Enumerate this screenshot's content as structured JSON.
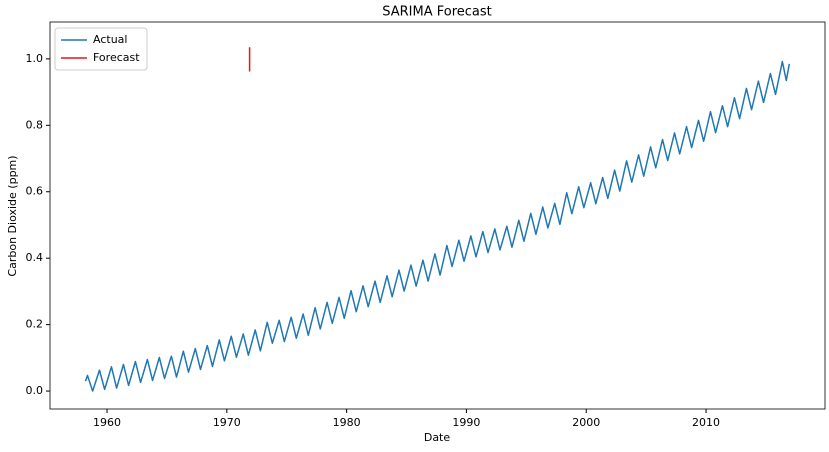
{
  "chart_data": {
    "type": "line",
    "title": "SARIMA Forecast",
    "xlabel": "Date",
    "ylabel": "Carbon Dioxide (ppm)",
    "xlim": [
      1955.24,
      2019.93
    ],
    "ylim": [
      -0.054,
      1.111
    ],
    "xticks": [
      1960,
      1970,
      1980,
      1990,
      2000,
      2010
    ],
    "yticks": [
      {
        "value": 0,
        "label": "0.0"
      },
      0.2,
      0.4,
      0.6,
      0.8,
      {
        "value": 1,
        "label": "1.0"
      }
    ],
    "grid": false,
    "legend": "upper left",
    "series": [
      {
        "name": "Actual",
        "color": "#1f77b4",
        "x": [
          1958.2,
          1958.37,
          1958.8,
          1959.37,
          1959.8,
          1960.37,
          1960.8,
          1961.37,
          1961.8,
          1962.37,
          1962.8,
          1963.37,
          1963.8,
          1964.37,
          1964.8,
          1965.37,
          1965.8,
          1966.37,
          1966.8,
          1967.37,
          1967.8,
          1968.37,
          1968.8,
          1969.37,
          1969.8,
          1970.37,
          1970.8,
          1971.37,
          1971.8,
          1972.37,
          1972.8,
          1973.37,
          1973.8,
          1974.37,
          1974.8,
          1975.37,
          1975.8,
          1976.37,
          1976.8,
          1977.37,
          1977.8,
          1978.37,
          1978.8,
          1979.37,
          1979.8,
          1980.37,
          1980.8,
          1981.37,
          1981.8,
          1982.37,
          1982.8,
          1983.37,
          1983.8,
          1984.37,
          1984.8,
          1985.37,
          1985.8,
          1986.37,
          1986.8,
          1987.37,
          1987.8,
          1988.37,
          1988.8,
          1989.37,
          1989.8,
          1990.37,
          1990.8,
          1991.37,
          1991.8,
          1992.37,
          1992.8,
          1993.37,
          1993.8,
          1994.37,
          1994.8,
          1995.37,
          1995.8,
          1996.37,
          1996.8,
          1997.37,
          1997.8,
          1998.37,
          1998.8,
          1999.37,
          1999.8,
          2000.37,
          2000.8,
          2001.37,
          2001.8,
          2002.37,
          2002.8,
          2003.37,
          2003.8,
          2004.37,
          2004.8,
          2005.37,
          2005.8,
          2006.37,
          2006.8,
          2007.37,
          2007.8,
          2008.37,
          2008.8,
          2009.37,
          2009.8,
          2010.37,
          2010.8,
          2011.37,
          2011.8,
          2012.37,
          2012.8,
          2013.37,
          2013.8,
          2014.37,
          2014.8,
          2015.37,
          2015.8,
          2016.37,
          2016.7,
          2016.95
        ],
        "values": [
          0.03,
          0.047,
          0.0,
          0.063,
          0.005,
          0.073,
          0.009,
          0.08,
          0.017,
          0.089,
          0.026,
          0.095,
          0.032,
          0.101,
          0.038,
          0.105,
          0.042,
          0.12,
          0.057,
          0.128,
          0.065,
          0.137,
          0.074,
          0.154,
          0.091,
          0.165,
          0.102,
          0.172,
          0.108,
          0.184,
          0.121,
          0.207,
          0.144,
          0.213,
          0.149,
          0.222,
          0.159,
          0.232,
          0.168,
          0.251,
          0.187,
          0.267,
          0.204,
          0.282,
          0.219,
          0.302,
          0.239,
          0.317,
          0.254,
          0.331,
          0.267,
          0.347,
          0.284,
          0.364,
          0.301,
          0.379,
          0.316,
          0.394,
          0.331,
          0.413,
          0.349,
          0.438,
          0.375,
          0.454,
          0.391,
          0.467,
          0.404,
          0.48,
          0.417,
          0.488,
          0.425,
          0.496,
          0.433,
          0.514,
          0.451,
          0.535,
          0.472,
          0.554,
          0.491,
          0.565,
          0.502,
          0.597,
          0.534,
          0.615,
          0.552,
          0.627,
          0.564,
          0.643,
          0.58,
          0.665,
          0.602,
          0.693,
          0.629,
          0.711,
          0.647,
          0.735,
          0.672,
          0.757,
          0.694,
          0.777,
          0.714,
          0.796,
          0.733,
          0.815,
          0.752,
          0.841,
          0.778,
          0.859,
          0.796,
          0.883,
          0.82,
          0.911,
          0.847,
          0.933,
          0.869,
          0.956,
          0.893,
          0.992,
          0.935,
          0.985
        ]
      },
      {
        "name": "Forecast",
        "color": "#e8141c",
        "x": [
          1971.9,
          1971.9
        ],
        "values": [
          1.035,
          0.962
        ]
      }
    ]
  }
}
